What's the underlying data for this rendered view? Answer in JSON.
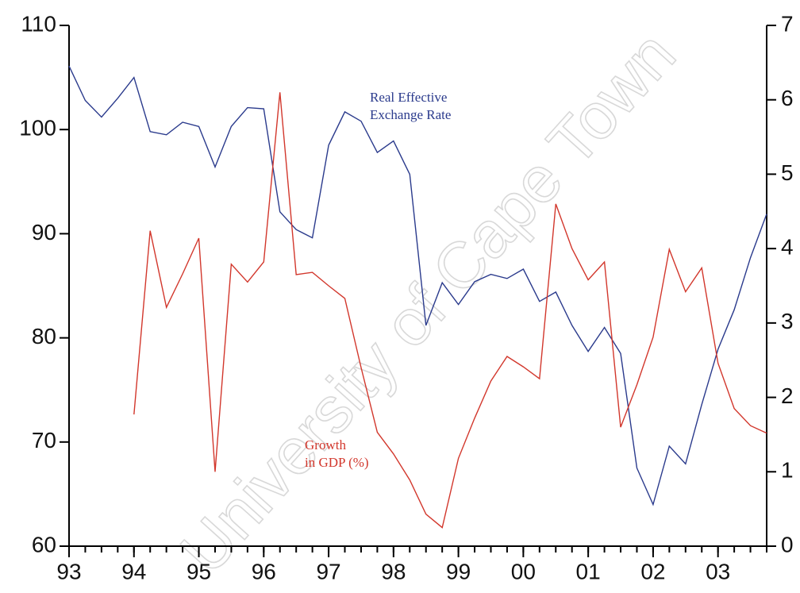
{
  "chart_data": {
    "type": "line",
    "watermark": "University of Cape Town",
    "x": [
      1993,
      1993.25,
      1993.5,
      1993.75,
      1994,
      1994.25,
      1994.5,
      1994.75,
      1995,
      1995.25,
      1995.5,
      1995.75,
      1996,
      1996.25,
      1996.5,
      1996.75,
      1997,
      1997.25,
      1997.5,
      1997.75,
      1998,
      1998.25,
      1998.5,
      1998.75,
      1999,
      1999.25,
      1999.5,
      1999.75,
      2000,
      2000.25,
      2000.5,
      2000.75,
      2001,
      2001.25,
      2001.5,
      2001.75,
      2002,
      2002.25,
      2002.5,
      2002.75,
      2003,
      2003.25,
      2003.5,
      2003.75
    ],
    "xlim": [
      1993,
      2003.75
    ],
    "xticks": [
      {
        "value": 1993,
        "label": "93"
      },
      {
        "value": 1994,
        "label": "94"
      },
      {
        "value": 1995,
        "label": "95"
      },
      {
        "value": 1996,
        "label": "96"
      },
      {
        "value": 1997,
        "label": "97"
      },
      {
        "value": 1998,
        "label": "98"
      },
      {
        "value": 1999,
        "label": "99"
      },
      {
        "value": 2000,
        "label": "00"
      },
      {
        "value": 2001,
        "label": "01"
      },
      {
        "value": 2002,
        "label": "02"
      },
      {
        "value": 2003,
        "label": "03"
      }
    ],
    "ylim": [
      60,
      110
    ],
    "yticks": [
      60,
      70,
      80,
      90,
      100,
      110
    ],
    "y2lim": [
      0,
      7
    ],
    "y2ticks": [
      0,
      1,
      2,
      3,
      4,
      5,
      6,
      7
    ],
    "series": [
      {
        "name": "Real Effective Exchange Rate",
        "color": "#2a3a8c",
        "values": [
          106.1,
          102.8,
          101.2,
          103,
          105,
          99.8,
          99.5,
          100.7,
          100.3,
          96.4,
          100.3,
          102.1,
          102,
          92.1,
          90.4,
          89.6,
          98.5,
          101.7,
          100.8,
          97.8,
          98.9,
          95.7,
          81.2,
          85.3,
          83.2,
          85.4,
          86.1,
          85.7,
          86.6,
          83.5,
          84.4,
          81.2,
          78.7,
          81,
          78.5,
          67.5,
          64,
          69.6,
          67.9,
          73.6,
          78.9,
          82.7,
          87.7,
          91.9
        ]
      },
      {
        "name": "Growth in GDP (%)",
        "color": "#d2372c",
        "axis": "y2",
        "values": [
          null,
          null,
          null,
          null,
          1.77,
          4.24,
          3.21,
          3.66,
          4.14,
          1.0,
          3.79,
          3.55,
          3.82,
          6.1,
          3.65,
          3.68,
          3.5,
          3.33,
          2.4,
          1.53,
          1.24,
          0.89,
          0.43,
          0.25,
          1.18,
          1.72,
          2.22,
          2.55,
          2.41,
          2.25,
          4.6,
          4.0,
          3.58,
          3.82,
          1.6,
          2.17,
          2.81,
          3.99,
          3.42,
          3.74,
          2.46,
          1.85,
          1.62,
          1.52
        ]
      }
    ],
    "annotations": [
      {
        "lines": [
          "Real Effective",
          "Exchange Rate"
        ],
        "color": "#2a3a8c"
      },
      {
        "lines": [
          "Growth",
          "in GDP (%)"
        ],
        "color": "#d2372c"
      }
    ]
  }
}
